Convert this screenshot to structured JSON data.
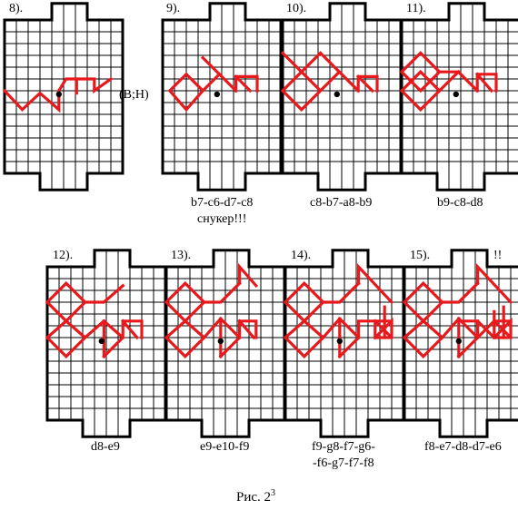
{
  "figure_caption": "Рис. 2",
  "figure_caption_sup": "3",
  "side_note": "(B;H)",
  "boards": [
    {
      "id": "8",
      "label": "8).",
      "caption": [],
      "extra": ""
    },
    {
      "id": "9",
      "label": "9).",
      "caption": [
        "b7-c6-d7-c8",
        "снукер!!!"
      ],
      "extra": ""
    },
    {
      "id": "10",
      "label": "10).",
      "caption": [
        "c8-b7-a8-b9"
      ],
      "extra": ""
    },
    {
      "id": "11",
      "label": "11).",
      "caption": [
        "b9-c8-d8"
      ],
      "extra": ""
    },
    {
      "id": "12",
      "label": "12).",
      "caption": [
        "d8-e9"
      ],
      "extra": ""
    },
    {
      "id": "13",
      "label": "13).",
      "caption": [
        "e9-e10-f9"
      ],
      "extra": ""
    },
    {
      "id": "14",
      "label": "14).",
      "caption": [
        "f9-g8-f7-g6-",
        "-f6-g7-f7-f8"
      ],
      "extra": ""
    },
    {
      "id": "15",
      "label": "15).",
      "caption": [
        "f8-e7-d8-d7-e6"
      ],
      "extra": "!!"
    }
  ],
  "colors": {
    "path": "#e8191c",
    "grid": "#000000"
  }
}
